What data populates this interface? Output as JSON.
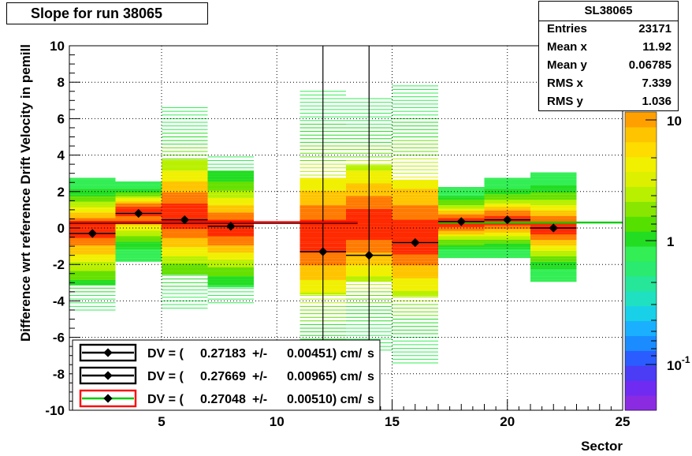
{
  "title": "Slope for run 38065",
  "stats": {
    "name": "SL38065",
    "rows": [
      {
        "key": "Entries",
        "value": "23171"
      },
      {
        "key": "Mean x",
        "value": "11.92"
      },
      {
        "key": "Mean y",
        "value": "0.06785"
      },
      {
        "key": "RMS x",
        "value": "7.339"
      },
      {
        "key": "RMS y",
        "value": "1.036"
      }
    ]
  },
  "colors": {
    "line_black": "#000000",
    "line_red": "#ff0000",
    "line_green": "#00cc00"
  },
  "chart_data": {
    "type": "heatmap",
    "xlabel": "Sector",
    "ylabel": "Difference wrt reference Drift Velocity in pemill",
    "xlim": [
      1,
      25
    ],
    "ylim": [
      -10,
      10
    ],
    "x_ticks": [
      5,
      10,
      15,
      20,
      25
    ],
    "y_ticks": [
      -10,
      -8,
      -6,
      -4,
      -2,
      0,
      2,
      4,
      6,
      8,
      10
    ],
    "grid": true,
    "colorbar": {
      "scale": "log",
      "ticks": [
        "10",
        "1",
        "10^-1"
      ]
    },
    "heatmap_columns": [
      {
        "x": [
          1,
          3
        ],
        "ymin": -4.5,
        "ymax": 2.7,
        "center": 0.0
      },
      {
        "x": [
          3,
          5
        ],
        "ymin": -1.8,
        "ymax": 2.5,
        "center": 1.0
      },
      {
        "x": [
          5,
          7
        ],
        "ymin": -4.4,
        "ymax": 6.6,
        "center": 0.6
      },
      {
        "x": [
          7,
          9
        ],
        "ymin": -4.1,
        "ymax": 4.0,
        "center": 0.0
      },
      {
        "x": [
          11,
          13
        ],
        "ymin": -7.7,
        "ymax": 7.5,
        "center": -0.5
      },
      {
        "x": [
          13,
          15
        ],
        "ymin": -6.7,
        "ymax": 7.2,
        "center": 0.2
      },
      {
        "x": [
          15,
          17
        ],
        "ymin": -7.4,
        "ymax": 7.9,
        "center": -0.6
      },
      {
        "x": [
          17,
          19
        ],
        "ymin": -1.6,
        "ymax": 2.2,
        "center": 0.3
      },
      {
        "x": [
          19,
          21
        ],
        "ymin": -1.6,
        "ymax": 2.7,
        "center": 0.4
      },
      {
        "x": [
          21,
          23
        ],
        "ymin": -2.9,
        "ymax": 3.0,
        "center": 0.0
      }
    ],
    "profile_points": [
      {
        "x": 2,
        "y": -0.3
      },
      {
        "x": 4,
        "y": 0.8
      },
      {
        "x": 6,
        "y": 0.45
      },
      {
        "x": 8,
        "y": 0.1
      },
      {
        "x": 12,
        "y": -1.3
      },
      {
        "x": 14,
        "y": -1.5
      },
      {
        "x": 16,
        "y": -0.8
      },
      {
        "x": 18,
        "y": 0.35
      },
      {
        "x": 20,
        "y": 0.45
      },
      {
        "x": 22,
        "y": 0.0
      }
    ],
    "fit_lines": [
      {
        "color": "black",
        "x": [
          1,
          13.5
        ],
        "y": 0.28
      },
      {
        "color": "red",
        "x": [
          1,
          13.5
        ],
        "y": 0.32
      },
      {
        "color": "green",
        "x": [
          17,
          25
        ],
        "y": 0.3
      }
    ],
    "vertical_lines_x": [
      12,
      14
    ],
    "legend": {
      "position": "bottom-left",
      "entries": [
        {
          "prefix": "DV = (",
          "value": "0.27183",
          "pm": "+/-",
          "err": "0.00451) cm/",
          "unit": "s",
          "line_color": "black",
          "frame_color": "black"
        },
        {
          "prefix": "DV = (",
          "value": "0.27669",
          "pm": "+/-",
          "err": "0.00965) cm/",
          "unit": "s",
          "line_color": "black",
          "frame_color": "black"
        },
        {
          "prefix": "DV = (",
          "value": "0.27048",
          "pm": "+/-",
          "err": "0.00510) cm/",
          "unit": "s",
          "line_color": "green",
          "frame_color": "red"
        }
      ]
    }
  }
}
